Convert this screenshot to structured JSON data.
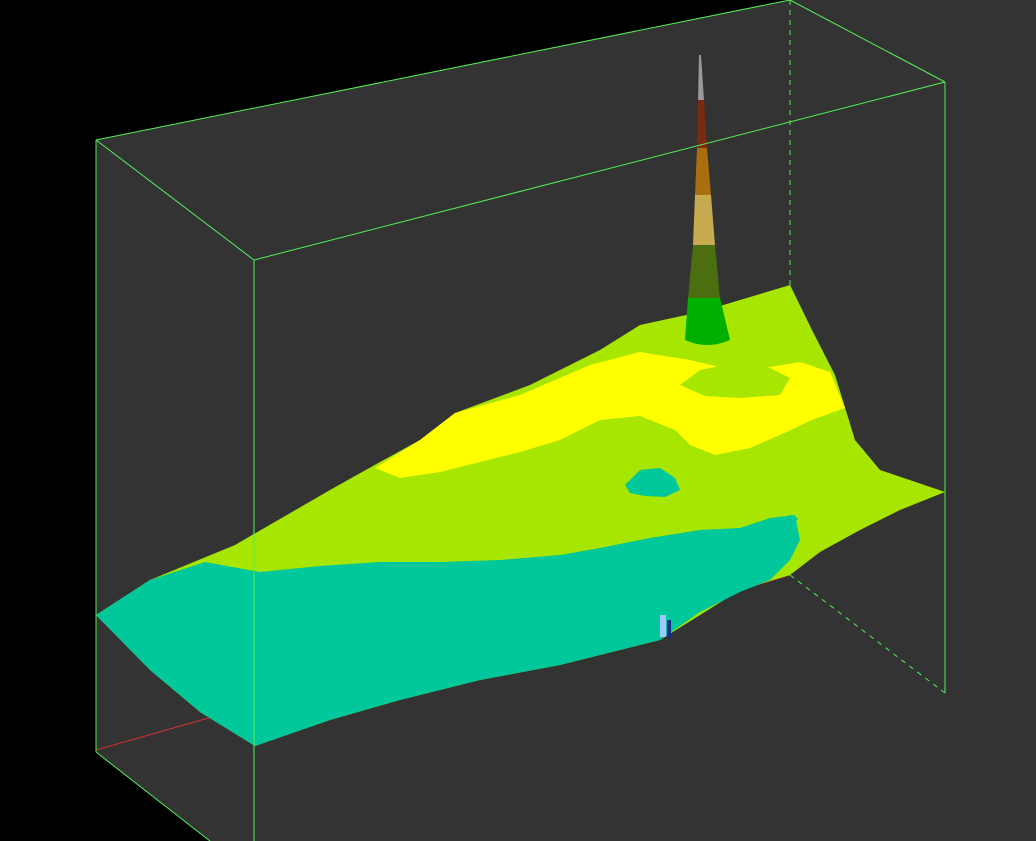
{
  "viewer": {
    "background_color": "#000000",
    "panel_color": "#333333",
    "bounding_box_color": "#55ee55",
    "axis_color": "#cc3333"
  },
  "surface": {
    "elevation_bands": [
      {
        "name": "teal",
        "color": "#00c89b"
      },
      {
        "name": "yellow-green",
        "color": "#a6e600"
      },
      {
        "name": "yellow",
        "color": "#ffff00"
      },
      {
        "name": "green",
        "color": "#00b000"
      },
      {
        "name": "olive-green",
        "color": "#4a6e10"
      },
      {
        "name": "khaki",
        "color": "#c8aa50"
      },
      {
        "name": "ochre",
        "color": "#aa6e10"
      },
      {
        "name": "brown",
        "color": "#7a2a10"
      },
      {
        "name": "grey",
        "color": "#999999"
      }
    ]
  },
  "anomaly_color": "#a0c8ff"
}
